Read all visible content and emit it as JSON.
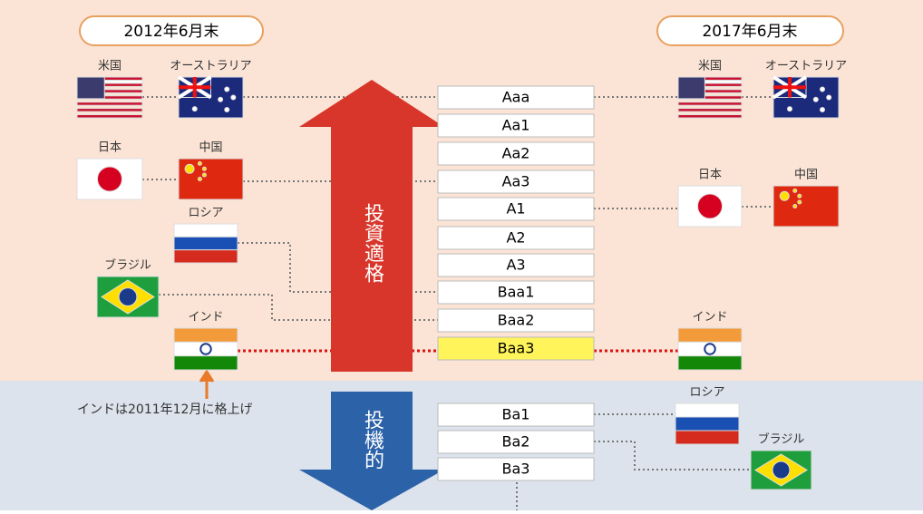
{
  "header": {
    "left": "2012年6月末",
    "right": "2017年6月末"
  },
  "ratings": [
    "Aaa",
    "Aa1",
    "Aa2",
    "Aa3",
    "A1",
    "A2",
    "A3",
    "Baa1",
    "Baa2",
    "Baa3",
    "Ba1",
    "Ba2",
    "Ba3"
  ],
  "arrows": {
    "investment_grade": "投資適格",
    "speculative": "投機的"
  },
  "left": {
    "countries": [
      "米国",
      "オーストラリア",
      "日本",
      "中国",
      "ロシア",
      "ブラジル",
      "インド"
    ]
  },
  "right": {
    "countries": [
      "米国",
      "オーストラリア",
      "日本",
      "中国",
      "インド",
      "ロシア",
      "ブラジル"
    ]
  },
  "annotation": "インドは2011年12月に格上げ"
}
